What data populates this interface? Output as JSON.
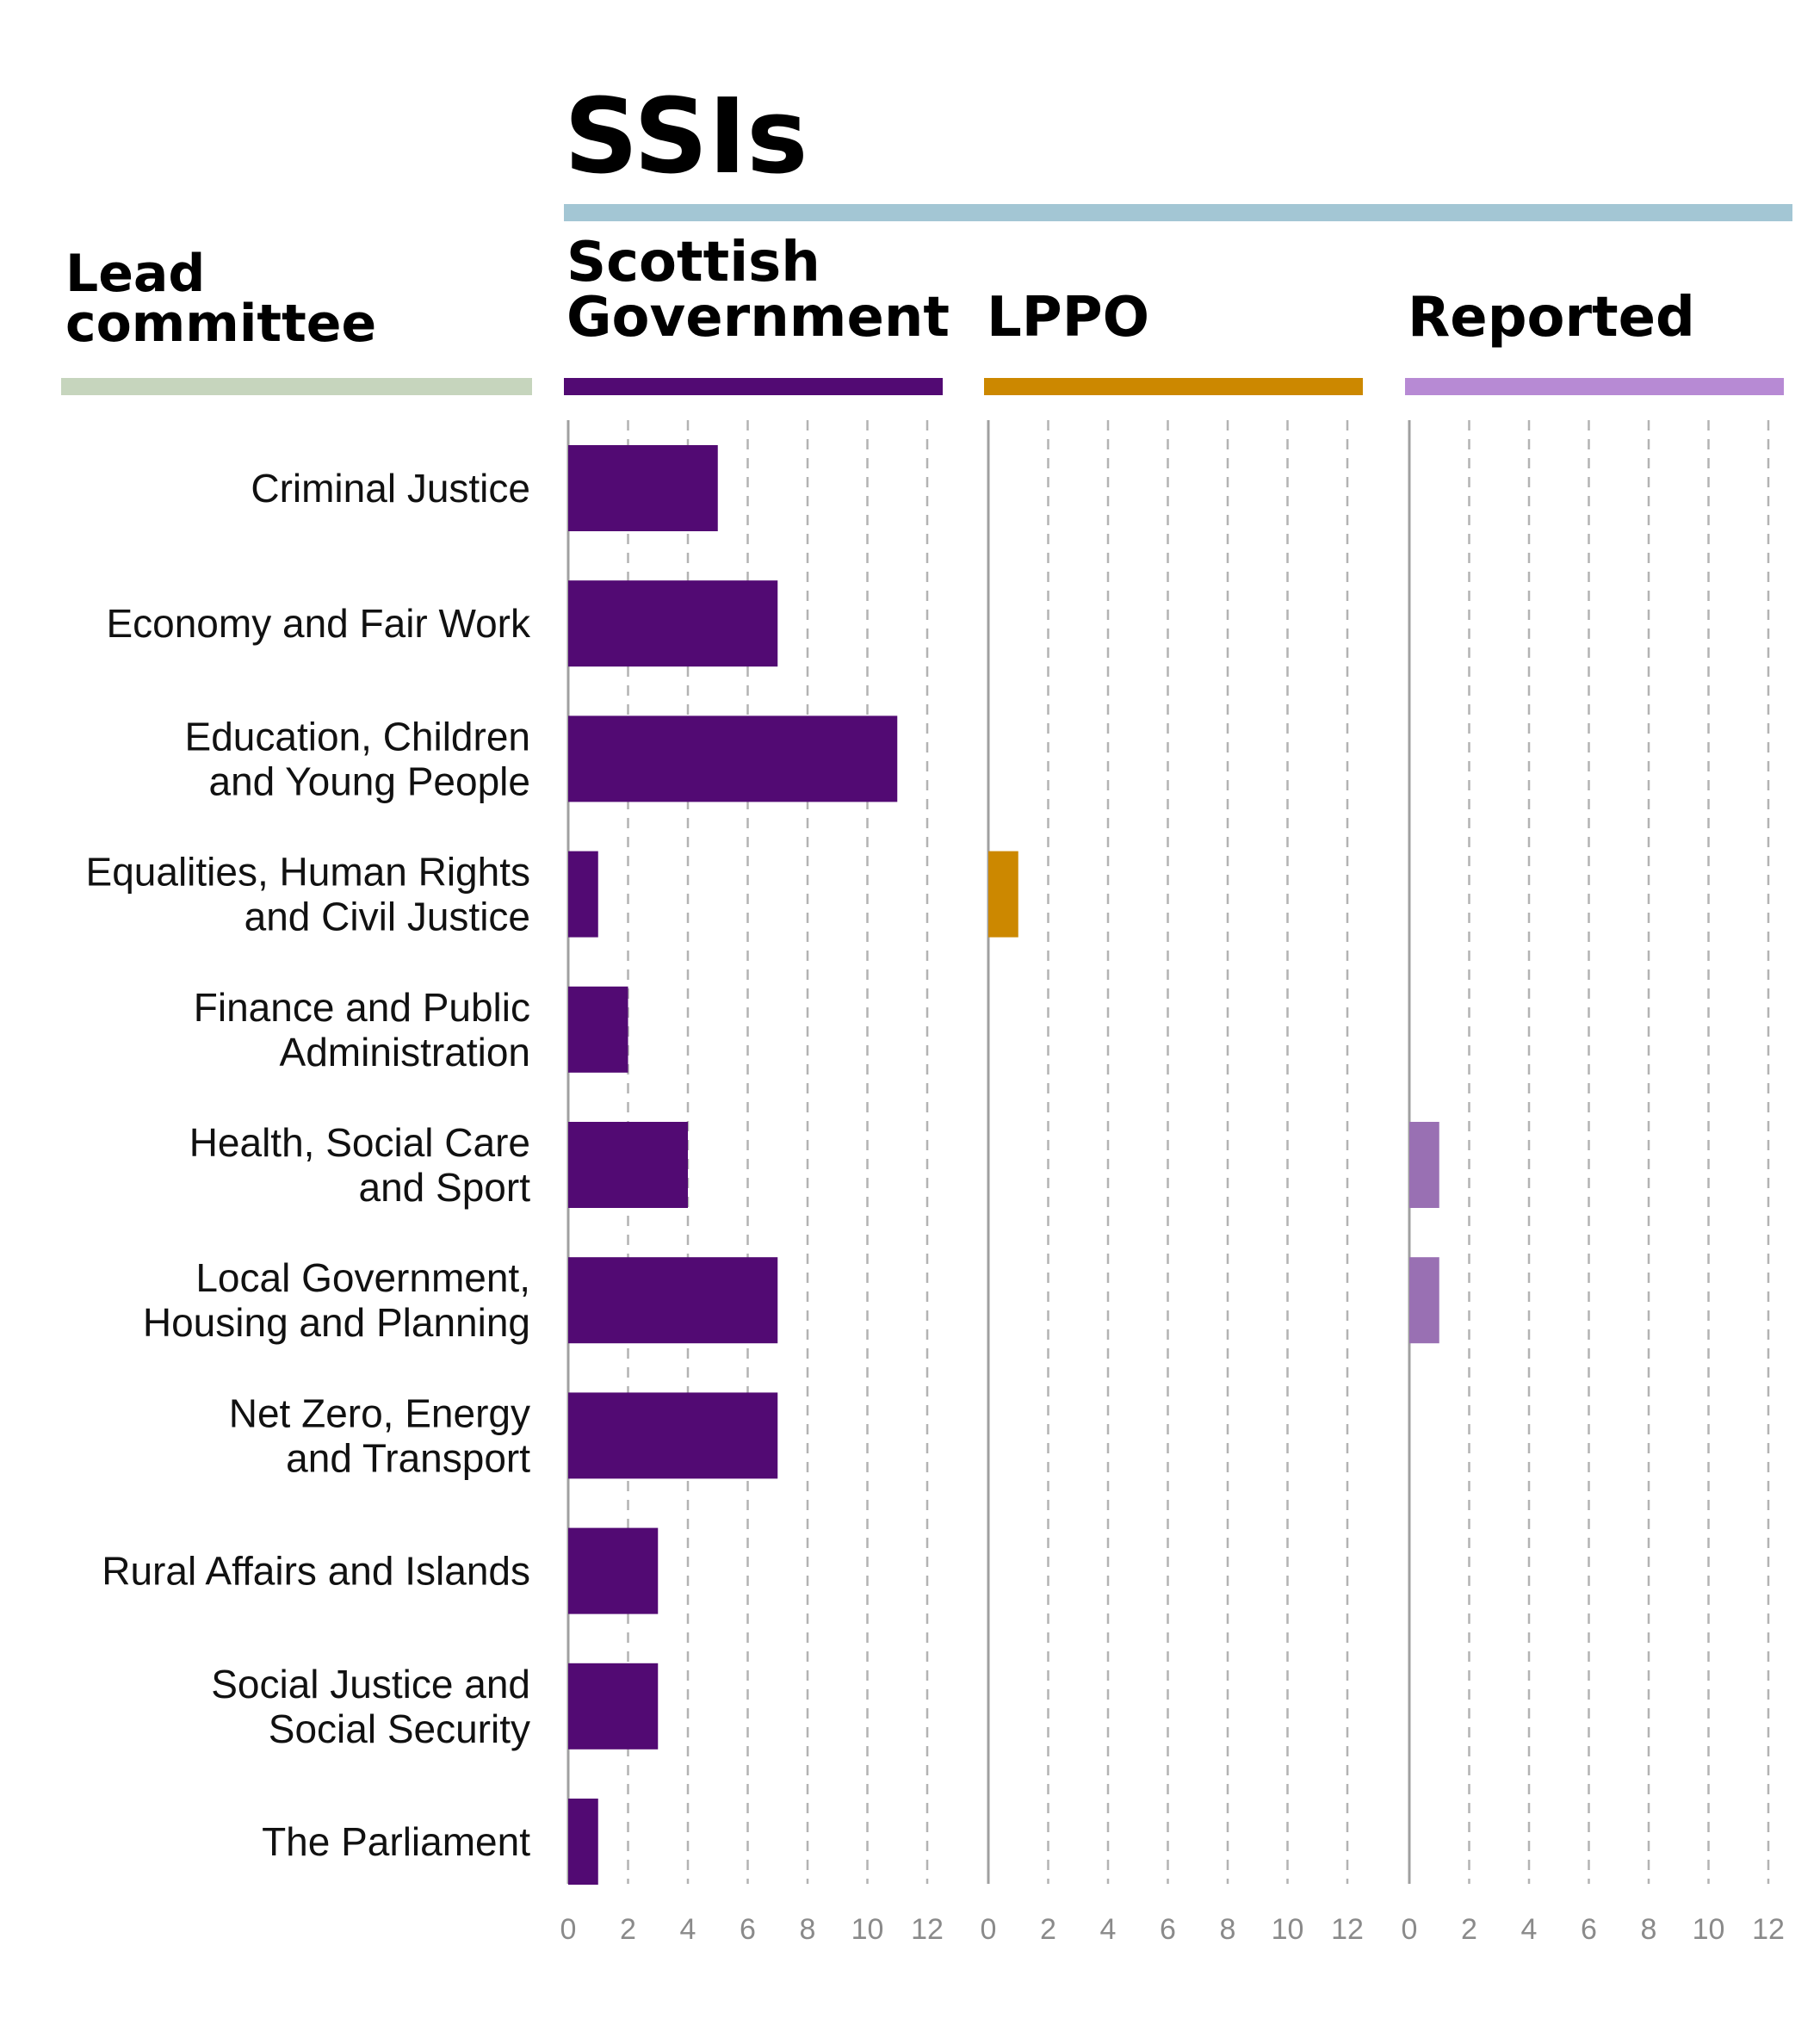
{
  "chart_data": {
    "type": "bar",
    "orientation": "horizontal",
    "title": "SSIs",
    "category_header_lines": [
      "Lead",
      "committee"
    ],
    "categories": [
      [
        "Criminal Justice"
      ],
      [
        "Economy and Fair Work"
      ],
      [
        "Education, Children",
        "and Young People"
      ],
      [
        "Equalities, Human Rights",
        "and Civil Justice"
      ],
      [
        "Finance and Public",
        "Administration"
      ],
      [
        "Health, Social Care",
        "and Sport"
      ],
      [
        "Local Government,",
        "Housing and Planning"
      ],
      [
        "Net Zero, Energy",
        "and Transport"
      ],
      [
        "Rural Affairs and Islands"
      ],
      [
        "Social Justice and",
        "Social Security"
      ],
      [
        "The Parliament"
      ]
    ],
    "series": [
      {
        "name": "Scottish Government",
        "name_lines": [
          "Scottish",
          "Government"
        ],
        "color": "#520a73",
        "values": [
          5,
          7,
          11,
          1,
          2,
          4,
          7,
          7,
          3,
          3,
          1
        ]
      },
      {
        "name": "LPPO",
        "name_lines": [
          "LPPO"
        ],
        "color": "#cc8800",
        "values": [
          0,
          0,
          0,
          1,
          0,
          0,
          0,
          0,
          0,
          0,
          0
        ]
      },
      {
        "name": "Reported",
        "name_lines": [
          "Reported"
        ],
        "color": "#9970b3",
        "values": [
          0,
          0,
          0,
          0,
          0,
          1,
          1,
          0,
          0,
          0,
          0
        ]
      }
    ],
    "xlim": [
      0,
      12
    ],
    "xticks": [
      0,
      2,
      4,
      6,
      8,
      10,
      12
    ],
    "grid": true,
    "colors": {
      "title_rule": "#a3c6d4",
      "category_rule": "#c6d5bd",
      "series_rules": [
        "#520a73",
        "#cc8800",
        "#b78ad4"
      ],
      "grid": "#b3b3b3",
      "axis": "#a0a0a0",
      "tick_text": "#8a8a8a"
    }
  }
}
